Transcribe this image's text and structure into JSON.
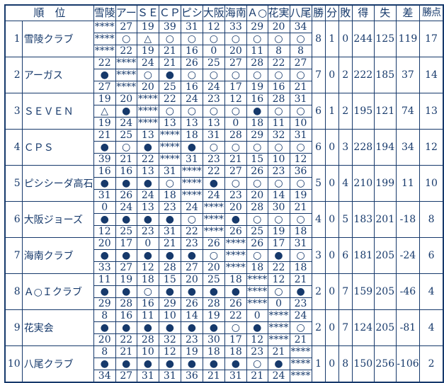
{
  "table": {
    "rank_header": "順　位",
    "opponents": [
      "雪陵",
      "アー",
      "ＳＥ",
      "ＣＰ",
      "ピシ",
      "大阪",
      "海南",
      "Ａ○",
      "花実",
      "八尾"
    ],
    "stat_headers": {
      "win": "勝",
      "draw": "分",
      "loss": "敗",
      "for": "得",
      "against": "失",
      "diff": "差",
      "points": "勝点"
    },
    "symbols": {
      "w": "○",
      "l": "●",
      "d": "△",
      "self": "****"
    },
    "colors": {
      "ink": "#16396b",
      "background": "#ffffff"
    },
    "teams": [
      {
        "rank": "1",
        "name": "雪陵クラブ",
        "results": [
          "self",
          {
            "t": 27,
            "s": "w",
            "b": 22
          },
          {
            "t": 19,
            "s": "d",
            "b": 19
          },
          {
            "t": 39,
            "s": "w",
            "b": 21
          },
          {
            "t": 31,
            "s": "w",
            "b": 16
          },
          {
            "t": 12,
            "s": "w",
            "b": 0
          },
          {
            "t": 33,
            "s": "w",
            "b": 20
          },
          {
            "t": 29,
            "s": "w",
            "b": 11
          },
          {
            "t": 20,
            "s": "w",
            "b": 8
          },
          {
            "t": 34,
            "s": "w",
            "b": 8
          }
        ],
        "stats": {
          "win": 8,
          "draw": 1,
          "loss": 0,
          "for": 244,
          "against": 125,
          "diff": 119,
          "points": 17
        }
      },
      {
        "rank": "2",
        "name": "アーガス",
        "results": [
          {
            "t": 22,
            "s": "l",
            "b": 27
          },
          "self",
          {
            "t": 24,
            "s": "w",
            "b": 20
          },
          {
            "t": 21,
            "s": "l",
            "b": 25
          },
          {
            "t": 26,
            "s": "w",
            "b": 16
          },
          {
            "t": 25,
            "s": "w",
            "b": 24
          },
          {
            "t": 27,
            "s": "w",
            "b": 17
          },
          {
            "t": 28,
            "s": "w",
            "b": 19
          },
          {
            "t": 22,
            "s": "w",
            "b": 16
          },
          {
            "t": 27,
            "s": "w",
            "b": 21
          }
        ],
        "stats": {
          "win": 7,
          "draw": 0,
          "loss": 2,
          "for": 222,
          "against": 185,
          "diff": 37,
          "points": 14
        }
      },
      {
        "rank": "3",
        "name": "ＳＥＶＥＮ",
        "results": [
          {
            "t": 19,
            "s": "d",
            "b": 19
          },
          {
            "t": 20,
            "s": "l",
            "b": 24
          },
          "self",
          {
            "t": 22,
            "s": "w",
            "b": 13
          },
          {
            "t": 24,
            "s": "w",
            "b": 13
          },
          {
            "t": 23,
            "s": "w",
            "b": 13
          },
          {
            "t": 12,
            "s": "w",
            "b": 0
          },
          {
            "t": 16,
            "s": "l",
            "b": 18
          },
          {
            "t": 28,
            "s": "w",
            "b": 11
          },
          {
            "t": 31,
            "s": "w",
            "b": 10
          }
        ],
        "stats": {
          "win": 6,
          "draw": 1,
          "loss": 2,
          "for": 195,
          "against": 121,
          "diff": 74,
          "points": 13
        }
      },
      {
        "rank": "4",
        "name": "ＣＰＳ",
        "results": [
          {
            "t": 21,
            "s": "l",
            "b": 39
          },
          {
            "t": 25,
            "s": "w",
            "b": 21
          },
          {
            "t": 13,
            "s": "l",
            "b": 22
          },
          "self",
          {
            "t": 18,
            "s": "l",
            "b": 31
          },
          {
            "t": 31,
            "s": "w",
            "b": 23
          },
          {
            "t": 28,
            "s": "w",
            "b": 21
          },
          {
            "t": 29,
            "s": "w",
            "b": 15
          },
          {
            "t": 32,
            "s": "w",
            "b": 10
          },
          {
            "t": 31,
            "s": "w",
            "b": 12
          }
        ],
        "stats": {
          "win": 6,
          "draw": 0,
          "loss": 3,
          "for": 228,
          "against": 194,
          "diff": 34,
          "points": 12
        }
      },
      {
        "rank": "5",
        "name": "ピシシーダ高石",
        "results": [
          {
            "t": 16,
            "s": "l",
            "b": 31
          },
          {
            "t": 16,
            "s": "l",
            "b": 26
          },
          {
            "t": 13,
            "s": "l",
            "b": 24
          },
          {
            "t": 31,
            "s": "w",
            "b": 18
          },
          "self",
          {
            "t": 22,
            "s": "l",
            "b": 24
          },
          {
            "t": 27,
            "s": "w",
            "b": 23
          },
          {
            "t": 26,
            "s": "w",
            "b": 20
          },
          {
            "t": 23,
            "s": "w",
            "b": 14
          },
          {
            "t": 36,
            "s": "w",
            "b": 19
          }
        ],
        "stats": {
          "win": 5,
          "draw": 0,
          "loss": 4,
          "for": 210,
          "against": 199,
          "diff": 11,
          "points": 10
        }
      },
      {
        "rank": "6",
        "name": "大阪ジョーズ",
        "results": [
          {
            "t": 0,
            "s": "l",
            "b": 12
          },
          {
            "t": 24,
            "s": "l",
            "b": 25
          },
          {
            "t": 13,
            "s": "l",
            "b": 23
          },
          {
            "t": 23,
            "s": "l",
            "b": 31
          },
          {
            "t": 24,
            "s": "w",
            "b": 22
          },
          "self",
          {
            "t": 20,
            "s": "l",
            "b": 26
          },
          {
            "t": 28,
            "s": "w",
            "b": 25
          },
          {
            "t": 30,
            "s": "w",
            "b": 19
          },
          {
            "t": 21,
            "s": "w",
            "b": 18
          }
        ],
        "stats": {
          "win": 4,
          "draw": 0,
          "loss": 5,
          "for": 183,
          "against": 201,
          "diff": -18,
          "points": 8
        }
      },
      {
        "rank": "7",
        "name": "海南クラブ",
        "results": [
          {
            "t": 20,
            "s": "l",
            "b": 33
          },
          {
            "t": 17,
            "s": "l",
            "b": 27
          },
          {
            "t": 0,
            "s": "l",
            "b": 12
          },
          {
            "t": 21,
            "s": "l",
            "b": 28
          },
          {
            "t": 23,
            "s": "l",
            "b": 27
          },
          {
            "t": 26,
            "s": "w",
            "b": 20
          },
          "self",
          {
            "t": 26,
            "s": "w",
            "b": 18
          },
          {
            "t": 17,
            "s": "l",
            "b": 22
          },
          {
            "t": 31,
            "s": "w",
            "b": 18
          }
        ],
        "stats": {
          "win": 3,
          "draw": 0,
          "loss": 6,
          "for": 181,
          "against": 205,
          "diff": -24,
          "points": 6
        }
      },
      {
        "rank": "8",
        "name": "Ａ○Ｉクラブ",
        "results": [
          {
            "t": 11,
            "s": "l",
            "b": 29
          },
          {
            "t": 19,
            "s": "l",
            "b": 28
          },
          {
            "t": 18,
            "s": "w",
            "b": 16
          },
          {
            "t": 15,
            "s": "l",
            "b": 29
          },
          {
            "t": 20,
            "s": "l",
            "b": 26
          },
          {
            "t": 25,
            "s": "l",
            "b": 28
          },
          {
            "t": 18,
            "s": "l",
            "b": 26
          },
          "self",
          {
            "t": 12,
            "s": "w",
            "b": 0
          },
          {
            "t": 21,
            "s": "l",
            "b": 23
          }
        ],
        "stats": {
          "win": 2,
          "draw": 0,
          "loss": 7,
          "for": 159,
          "against": 205,
          "diff": -46,
          "points": 4
        }
      },
      {
        "rank": "9",
        "name": "花実会",
        "results": [
          {
            "t": 8,
            "s": "l",
            "b": 20
          },
          {
            "t": 16,
            "s": "l",
            "b": 22
          },
          {
            "t": 11,
            "s": "l",
            "b": 28
          },
          {
            "t": 10,
            "s": "l",
            "b": 32
          },
          {
            "t": 14,
            "s": "l",
            "b": 23
          },
          {
            "t": 19,
            "s": "l",
            "b": 30
          },
          {
            "t": 22,
            "s": "w",
            "b": 17
          },
          {
            "t": 0,
            "s": "l",
            "b": 12
          },
          "self",
          {
            "t": 24,
            "s": "w",
            "b": 21
          }
        ],
        "stats": {
          "win": 2,
          "draw": 0,
          "loss": 7,
          "for": 124,
          "against": 205,
          "diff": -81,
          "points": 4
        }
      },
      {
        "rank": "10",
        "name": "八尾クラブ",
        "results": [
          {
            "t": 8,
            "s": "l",
            "b": 34
          },
          {
            "t": 21,
            "s": "l",
            "b": 27
          },
          {
            "t": 10,
            "s": "l",
            "b": 31
          },
          {
            "t": 12,
            "s": "l",
            "b": 31
          },
          {
            "t": 19,
            "s": "l",
            "b": 36
          },
          {
            "t": 18,
            "s": "l",
            "b": 21
          },
          {
            "t": 18,
            "s": "l",
            "b": 31
          },
          {
            "t": 23,
            "s": "w",
            "b": 21
          },
          {
            "t": 21,
            "s": "l",
            "b": 24
          },
          "self"
        ],
        "stats": {
          "win": 1,
          "draw": 0,
          "loss": 8,
          "for": 150,
          "against": 256,
          "diff": -106,
          "points": 2
        }
      }
    ]
  }
}
